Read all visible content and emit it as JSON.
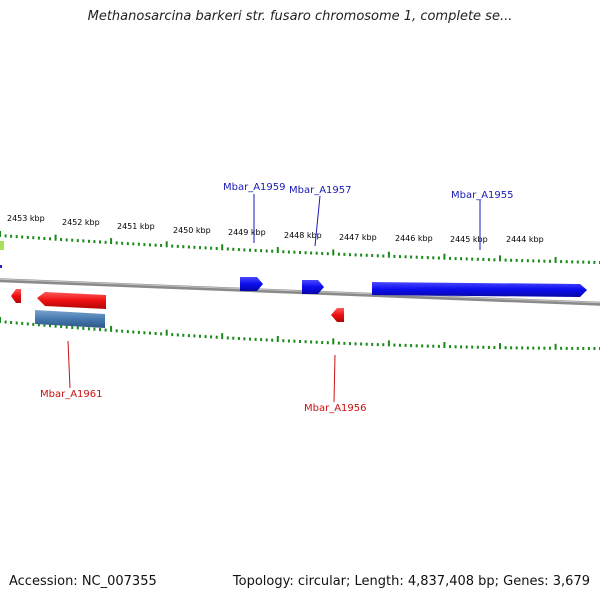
{
  "title": "Methanosarcina barkeri str. fusaro chromosome 1, complete se...",
  "ticks": [
    "2453 kbp",
    "2452 kbp",
    "2451 kbp",
    "2450 kbp",
    "2449 kbp",
    "2448 kbp",
    "2447 kbp",
    "2446 kbp",
    "2445 kbp",
    "2444 kbp"
  ],
  "genes": {
    "forward": [
      "Mbar_A1959",
      "Mbar_A1957",
      "Mbar_A1955"
    ],
    "reverse": [
      "Mbar_A1961",
      "Mbar_A1956"
    ]
  },
  "footer": {
    "accession": "Accession: NC_007355",
    "summary": "Topology: circular; Length: 4,837,408 bp; Genes: 3,679"
  },
  "colors": {
    "forward_gene": "#1010ee",
    "reverse_gene": "#ee1010",
    "rna_gene": "#4679b0",
    "tick": "#1a8a1a",
    "backbone": "#808080",
    "forward_label": "#1a1ab8",
    "reverse_label": "#c81010"
  }
}
